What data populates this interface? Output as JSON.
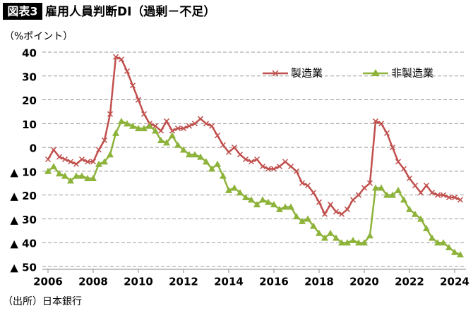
{
  "header": {
    "badge": "図表3",
    "title": "雇用人員判断DI（過剰－不足）"
  },
  "source": "（出所）日本銀行",
  "chart_data": {
    "type": "line",
    "y_axis_label": "（%ポイント）",
    "x": [
      2006,
      2006.25,
      2006.5,
      2006.75,
      2007,
      2007.25,
      2007.5,
      2007.75,
      2008,
      2008.25,
      2008.5,
      2008.75,
      2009,
      2009.25,
      2009.5,
      2009.75,
      2010,
      2010.25,
      2010.5,
      2010.75,
      2011,
      2011.25,
      2011.5,
      2011.75,
      2012,
      2012.25,
      2012.5,
      2012.75,
      2013,
      2013.25,
      2013.5,
      2013.75,
      2014,
      2014.25,
      2014.5,
      2014.75,
      2015,
      2015.25,
      2015.5,
      2015.75,
      2016,
      2016.25,
      2016.5,
      2016.75,
      2017,
      2017.25,
      2017.5,
      2017.75,
      2018,
      2018.25,
      2018.5,
      2018.75,
      2019,
      2019.25,
      2019.5,
      2019.75,
      2020,
      2020.25,
      2020.5,
      2020.75,
      2021,
      2021.25,
      2021.5,
      2021.75,
      2022,
      2022.25,
      2022.5,
      2022.75,
      2023,
      2023.25,
      2023.5,
      2023.75,
      2024,
      2024.25
    ],
    "series": [
      {
        "name": "製造業",
        "color": "#c0504d",
        "marker": "x",
        "values": [
          -5,
          -1,
          -4,
          -5,
          -6,
          -7,
          -5,
          -6,
          -6,
          -1,
          3,
          14,
          38,
          37,
          32,
          26,
          20,
          14,
          10,
          9,
          7,
          11,
          7,
          8,
          8,
          9,
          10,
          12,
          10,
          9,
          5,
          1,
          -2,
          0,
          -3,
          -5,
          -6,
          -5,
          -8,
          -9,
          -9,
          -8,
          -6,
          -8,
          -10,
          -15,
          -16,
          -19,
          -23,
          -28,
          -24,
          -27,
          -28,
          -26,
          -22,
          -20,
          -17,
          -15,
          11,
          10,
          6,
          0,
          -6,
          -9,
          -13,
          -16,
          -19,
          -16,
          -19,
          -20,
          -20,
          -21,
          -21,
          -22
        ]
      },
      {
        "name": "非製造業",
        "color": "#8db33a",
        "marker": "triangle",
        "values": [
          -10,
          -8,
          -11,
          -12,
          -14,
          -12,
          -12,
          -13,
          -13,
          -7,
          -6,
          -3,
          6,
          11,
          10,
          9,
          8,
          8,
          9,
          7,
          3,
          2,
          5,
          1,
          -1,
          -3,
          -3,
          -4,
          -6,
          -9,
          -7,
          -12,
          -18,
          -17,
          -19,
          -21,
          -22,
          -24,
          -22,
          -23,
          -24,
          -26,
          -25,
          -25,
          -29,
          -31,
          -30,
          -33,
          -36,
          -38,
          -36,
          -38,
          -40,
          -40,
          -39,
          -40,
          -40,
          -37,
          -17,
          -17,
          -20,
          -20,
          -18,
          -22,
          -26,
          -28,
          -30,
          -34,
          -38,
          -40,
          -40,
          -42,
          -44,
          -45
        ]
      }
    ],
    "xlim": [
      2005.75,
      2024.5
    ],
    "xticks": [
      2006,
      2008,
      2010,
      2012,
      2014,
      2016,
      2018,
      2020,
      2022,
      2024
    ],
    "ylim": [
      -50,
      40
    ],
    "yticks": [
      {
        "value": -50,
        "label": "▲ 50"
      },
      {
        "value": -40,
        "label": "▲ 40"
      },
      {
        "value": -30,
        "label": "▲ 30"
      },
      {
        "value": -20,
        "label": "▲ 20"
      },
      {
        "value": -10,
        "label": "▲ 10"
      },
      0,
      10,
      20,
      30,
      40
    ],
    "grid": true,
    "legend": "top-right"
  }
}
